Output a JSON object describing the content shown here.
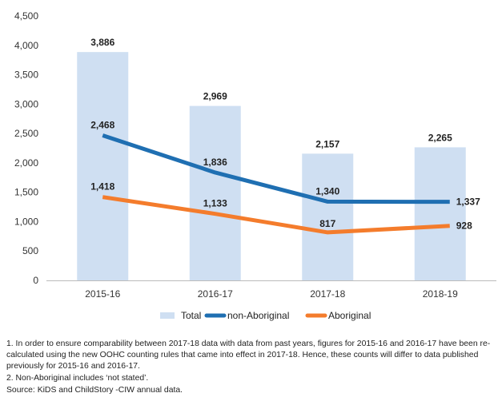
{
  "chart_data": {
    "type": "bar",
    "categories": [
      "2015-16",
      "2016-17",
      "2017-18",
      "2018-19"
    ],
    "ylim": [
      0,
      4500
    ],
    "yticks": [
      0,
      500,
      1000,
      1500,
      2000,
      2500,
      3000,
      3500,
      4000,
      4500
    ],
    "ytick_labels": [
      "0",
      "500",
      "1,000",
      "1,500",
      "2,000",
      "2,500",
      "3,000",
      "3,500",
      "4,000",
      "4,500"
    ],
    "series": [
      {
        "name": "Total",
        "kind": "bar",
        "color": "#cfdff2",
        "values": [
          3886,
          2969,
          2157,
          2265
        ],
        "labels": [
          "3,886",
          "2,969",
          "2,157",
          "2,265"
        ]
      },
      {
        "name": "non-Aboriginal",
        "kind": "line",
        "color": "#1f6fb2",
        "values": [
          2468,
          1836,
          1340,
          1337
        ],
        "labels": [
          "2,468",
          "1,836",
          "1,340",
          "1,337"
        ]
      },
      {
        "name": "Aboriginal",
        "kind": "line",
        "color": "#f47c2c",
        "values": [
          1418,
          1133,
          817,
          928
        ],
        "labels": [
          "1,418",
          "1,133",
          "817",
          "928"
        ]
      }
    ],
    "legend": {
      "position": "bottom",
      "items": [
        "Total",
        "non-Aboriginal",
        "Aboriginal"
      ]
    }
  },
  "notes": {
    "note1": "1. In order to ensure comparability between 2017-18 data with data from past years, figures for 2015-16 and 2016-17 have been re-calculated using the new OOHC counting rules that came into effect in 2017-18. Hence, these counts will differ to data published previously for 2015-16 and 2016-17.",
    "note2": "2. Non-Aboriginal includes ‘not stated’.",
    "source": "Source: KiDS and ChildStory -CIW annual data."
  }
}
